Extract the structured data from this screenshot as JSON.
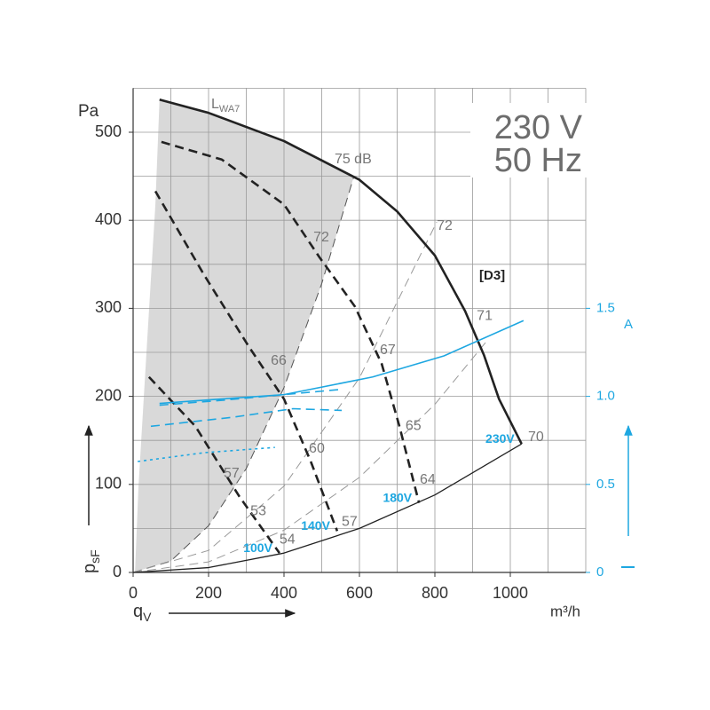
{
  "chart_data": {
    "type": "line",
    "title": "230 V",
    "subtitle": "50 Hz",
    "model": "[D3]",
    "y_unit": "Pa",
    "y2_unit": "A",
    "x_unit": "m³/h",
    "x_label": {
      "text": "q",
      "sub": "V"
    },
    "y_label": {
      "text": "p",
      "sub": "sF"
    },
    "xlim": [
      0,
      1200
    ],
    "ylim": [
      0,
      550
    ],
    "y2lim": [
      0,
      2.75
    ],
    "xticks": [
      0,
      200,
      400,
      600,
      800,
      1000
    ],
    "yticks": [
      0,
      100,
      200,
      300,
      400,
      500
    ],
    "y2ticks": [
      0,
      0.5,
      {
        "value": 1,
        "label": "1.0"
      },
      1.5
    ],
    "x_gridlines": [
      0,
      100,
      200,
      300,
      400,
      500,
      600,
      700,
      800,
      900,
      1000,
      1100,
      1200
    ],
    "y_gridlines": [
      0,
      50,
      100,
      150,
      200,
      250,
      300,
      350,
      400,
      450,
      500,
      550
    ],
    "shaded_region": {
      "color": "#d9d9d9",
      "x": [
        0,
        5,
        14,
        28,
        42,
        59,
        70,
        200,
        400,
        584,
        500,
        400,
        300,
        200,
        100
      ],
      "values": [
        0,
        0,
        96,
        197,
        297,
        418,
        537,
        522,
        490,
        448,
        328,
        210,
        118,
        53,
        13
      ]
    },
    "series": [
      {
        "name": "230V",
        "color": "#222222",
        "dash": "solid",
        "x": [
          70,
          200,
          400,
          600,
          700,
          800,
          880,
          930,
          970,
          1030
        ],
        "values": [
          537,
          522,
          490,
          446,
          410,
          360,
          297,
          247,
          197,
          146
        ]
      },
      {
        "name": "180V",
        "color": "#222222",
        "dash": "dashed",
        "x": [
          75,
          235,
          400,
          494,
          588,
          659,
          706,
          758
        ],
        "values": [
          489,
          469,
          418,
          358,
          302,
          237,
          166,
          79
        ]
      },
      {
        "name": "140V",
        "color": "#222222",
        "dash": "dashed",
        "x": [
          59,
          188,
          306,
          400,
          471,
          541
        ],
        "values": [
          433,
          338,
          257,
          197,
          126,
          47
        ]
      },
      {
        "name": "100V",
        "color": "#222222",
        "dash": "dashed",
        "x": [
          42,
          165,
          282,
          388
        ],
        "values": [
          222,
          166,
          86,
          22
        ]
      }
    ],
    "current_series": [
      {
        "color": "#1ea7e1",
        "dash": "solid",
        "axis": "y2",
        "x": [
          70,
          200,
          400,
          635,
          824,
          1035
        ],
        "values": [
          0.96,
          0.98,
          1.01,
          1.11,
          1.23,
          1.43
        ]
      },
      {
        "color": "#1ea7e1",
        "dash": "dashed",
        "axis": "y2",
        "x": [
          70,
          250,
          400,
          553
        ],
        "values": [
          0.95,
          0.98,
          1.01,
          1.04
        ]
      },
      {
        "color": "#1ea7e1",
        "dash": "dashed",
        "axis": "y2",
        "x": [
          47,
          259,
          424,
          553
        ],
        "values": [
          0.83,
          0.88,
          0.93,
          0.92
        ]
      },
      {
        "color": "#1ea7e1",
        "dash": "dotted",
        "axis": "y2",
        "x": [
          12,
          188,
          376
        ],
        "values": [
          0.63,
          0.68,
          0.71
        ]
      }
    ],
    "system_curves": [
      {
        "color": "#555555",
        "dash": "dashed",
        "x": [
          0,
          100,
          200,
          300,
          400,
          500,
          584
        ],
        "values": [
          0,
          13,
          53,
          118,
          210,
          328,
          448
        ]
      },
      {
        "color": "#999999",
        "dash": "dashed",
        "x": [
          0,
          200,
          400,
          600,
          805
        ],
        "values": [
          0,
          25,
          98,
          221,
          398
        ]
      },
      {
        "color": "#999999",
        "dash": "dashed",
        "x": [
          0,
          200,
          400,
          600,
          800,
          936
        ],
        "values": [
          0,
          12,
          48,
          108,
          191,
          262
        ]
      },
      {
        "color": "#222222",
        "dash": "solid",
        "x": [
          0,
          200,
          400,
          600,
          800,
          1030
        ],
        "values": [
          0,
          5.5,
          22,
          50,
          88,
          146
        ]
      }
    ],
    "annotations": [
      {
        "text": "L",
        "sub": "WA7",
        "x": 207,
        "y": 531
      },
      {
        "text": "75 dB",
        "x": 534,
        "y": 469
      },
      {
        "text": "72",
        "x": 805,
        "y": 393
      },
      {
        "text": "71",
        "x": 911,
        "y": 291
      },
      {
        "text": "70",
        "x": 1047,
        "y": 153
      },
      {
        "text": "72",
        "x": 478,
        "y": 380
      },
      {
        "text": "67",
        "x": 654,
        "y": 252
      },
      {
        "text": "65",
        "x": 722,
        "y": 166
      },
      {
        "text": "64",
        "x": 760,
        "y": 105
      },
      {
        "text": "66",
        "x": 365,
        "y": 240
      },
      {
        "text": "60",
        "x": 466,
        "y": 140
      },
      {
        "text": "57",
        "x": 553,
        "y": 57
      },
      {
        "text": "57",
        "x": 240,
        "y": 112
      },
      {
        "text": "53",
        "x": 311,
        "y": 69
      },
      {
        "text": "54",
        "x": 388,
        "y": 37
      }
    ]
  }
}
